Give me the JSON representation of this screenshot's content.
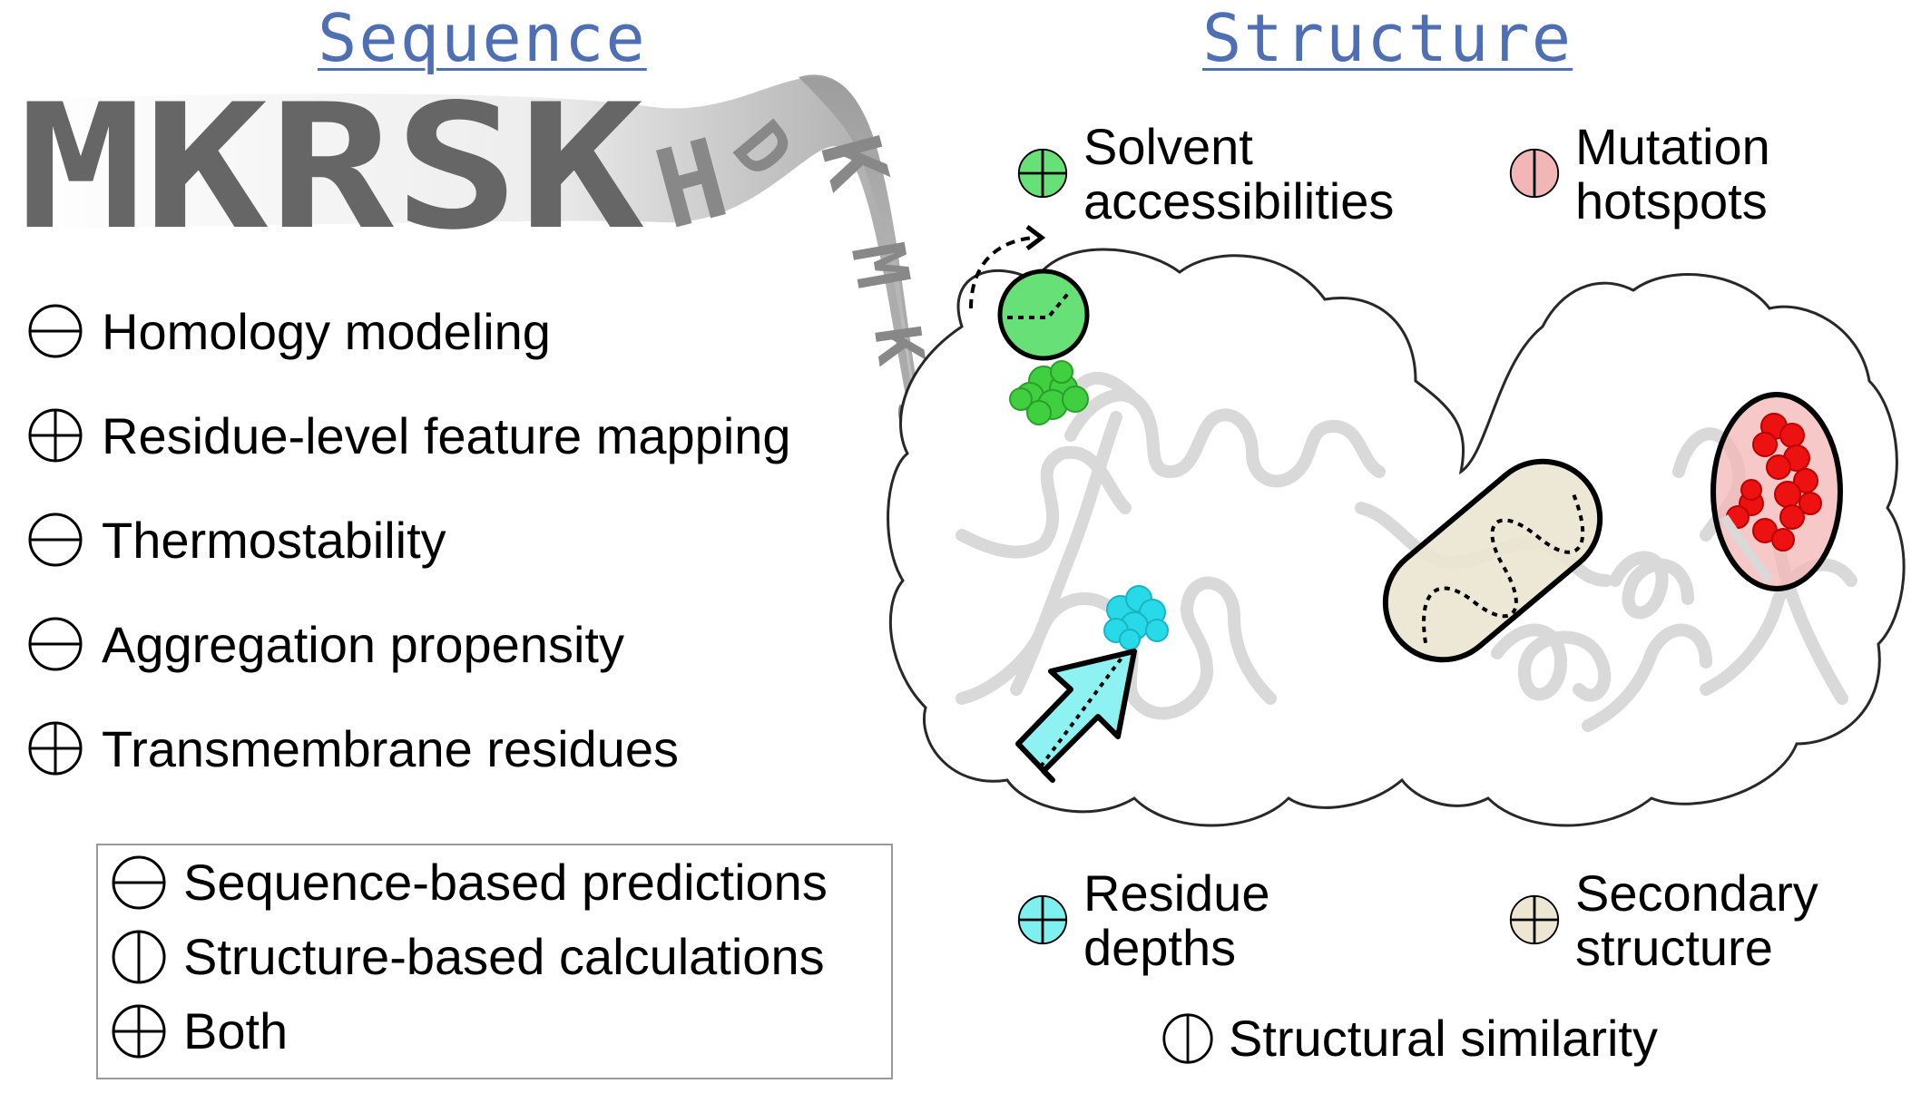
{
  "headings": {
    "sequence": "Sequence",
    "structure": "Structure"
  },
  "sequence_letters": "MKRSK",
  "features": [
    {
      "label": "Homology modeling",
      "symbol": "sequence-based-icon"
    },
    {
      "label": "Residue-level feature mapping",
      "symbol": "both-icon"
    },
    {
      "label": "Thermostability",
      "symbol": "sequence-based-icon"
    },
    {
      "label": "Aggregation propensity",
      "symbol": "sequence-based-icon"
    },
    {
      "label": "Transmembrane residues",
      "symbol": "both-icon"
    }
  ],
  "legend": [
    {
      "label": "Sequence-based predictions",
      "symbol": "sequence-based-icon"
    },
    {
      "label": "Structure-based calculations",
      "symbol": "structure-based-icon"
    },
    {
      "label": "Both",
      "symbol": "both-icon"
    }
  ],
  "structure_labels": {
    "solvent": "Solvent\naccessibilities",
    "mutation": "Mutation\nhotspots",
    "depth": "Residue\ndepths",
    "secondary": "Secondary\nstructure",
    "similarity": "Structural similarity"
  },
  "colors": {
    "heading": "#4e6fb3",
    "solvent": "#66e077",
    "mutation": "#f3b6b6",
    "depth": "#7ff0f0",
    "secondary": "#ece6d3",
    "letters": "#666666"
  }
}
